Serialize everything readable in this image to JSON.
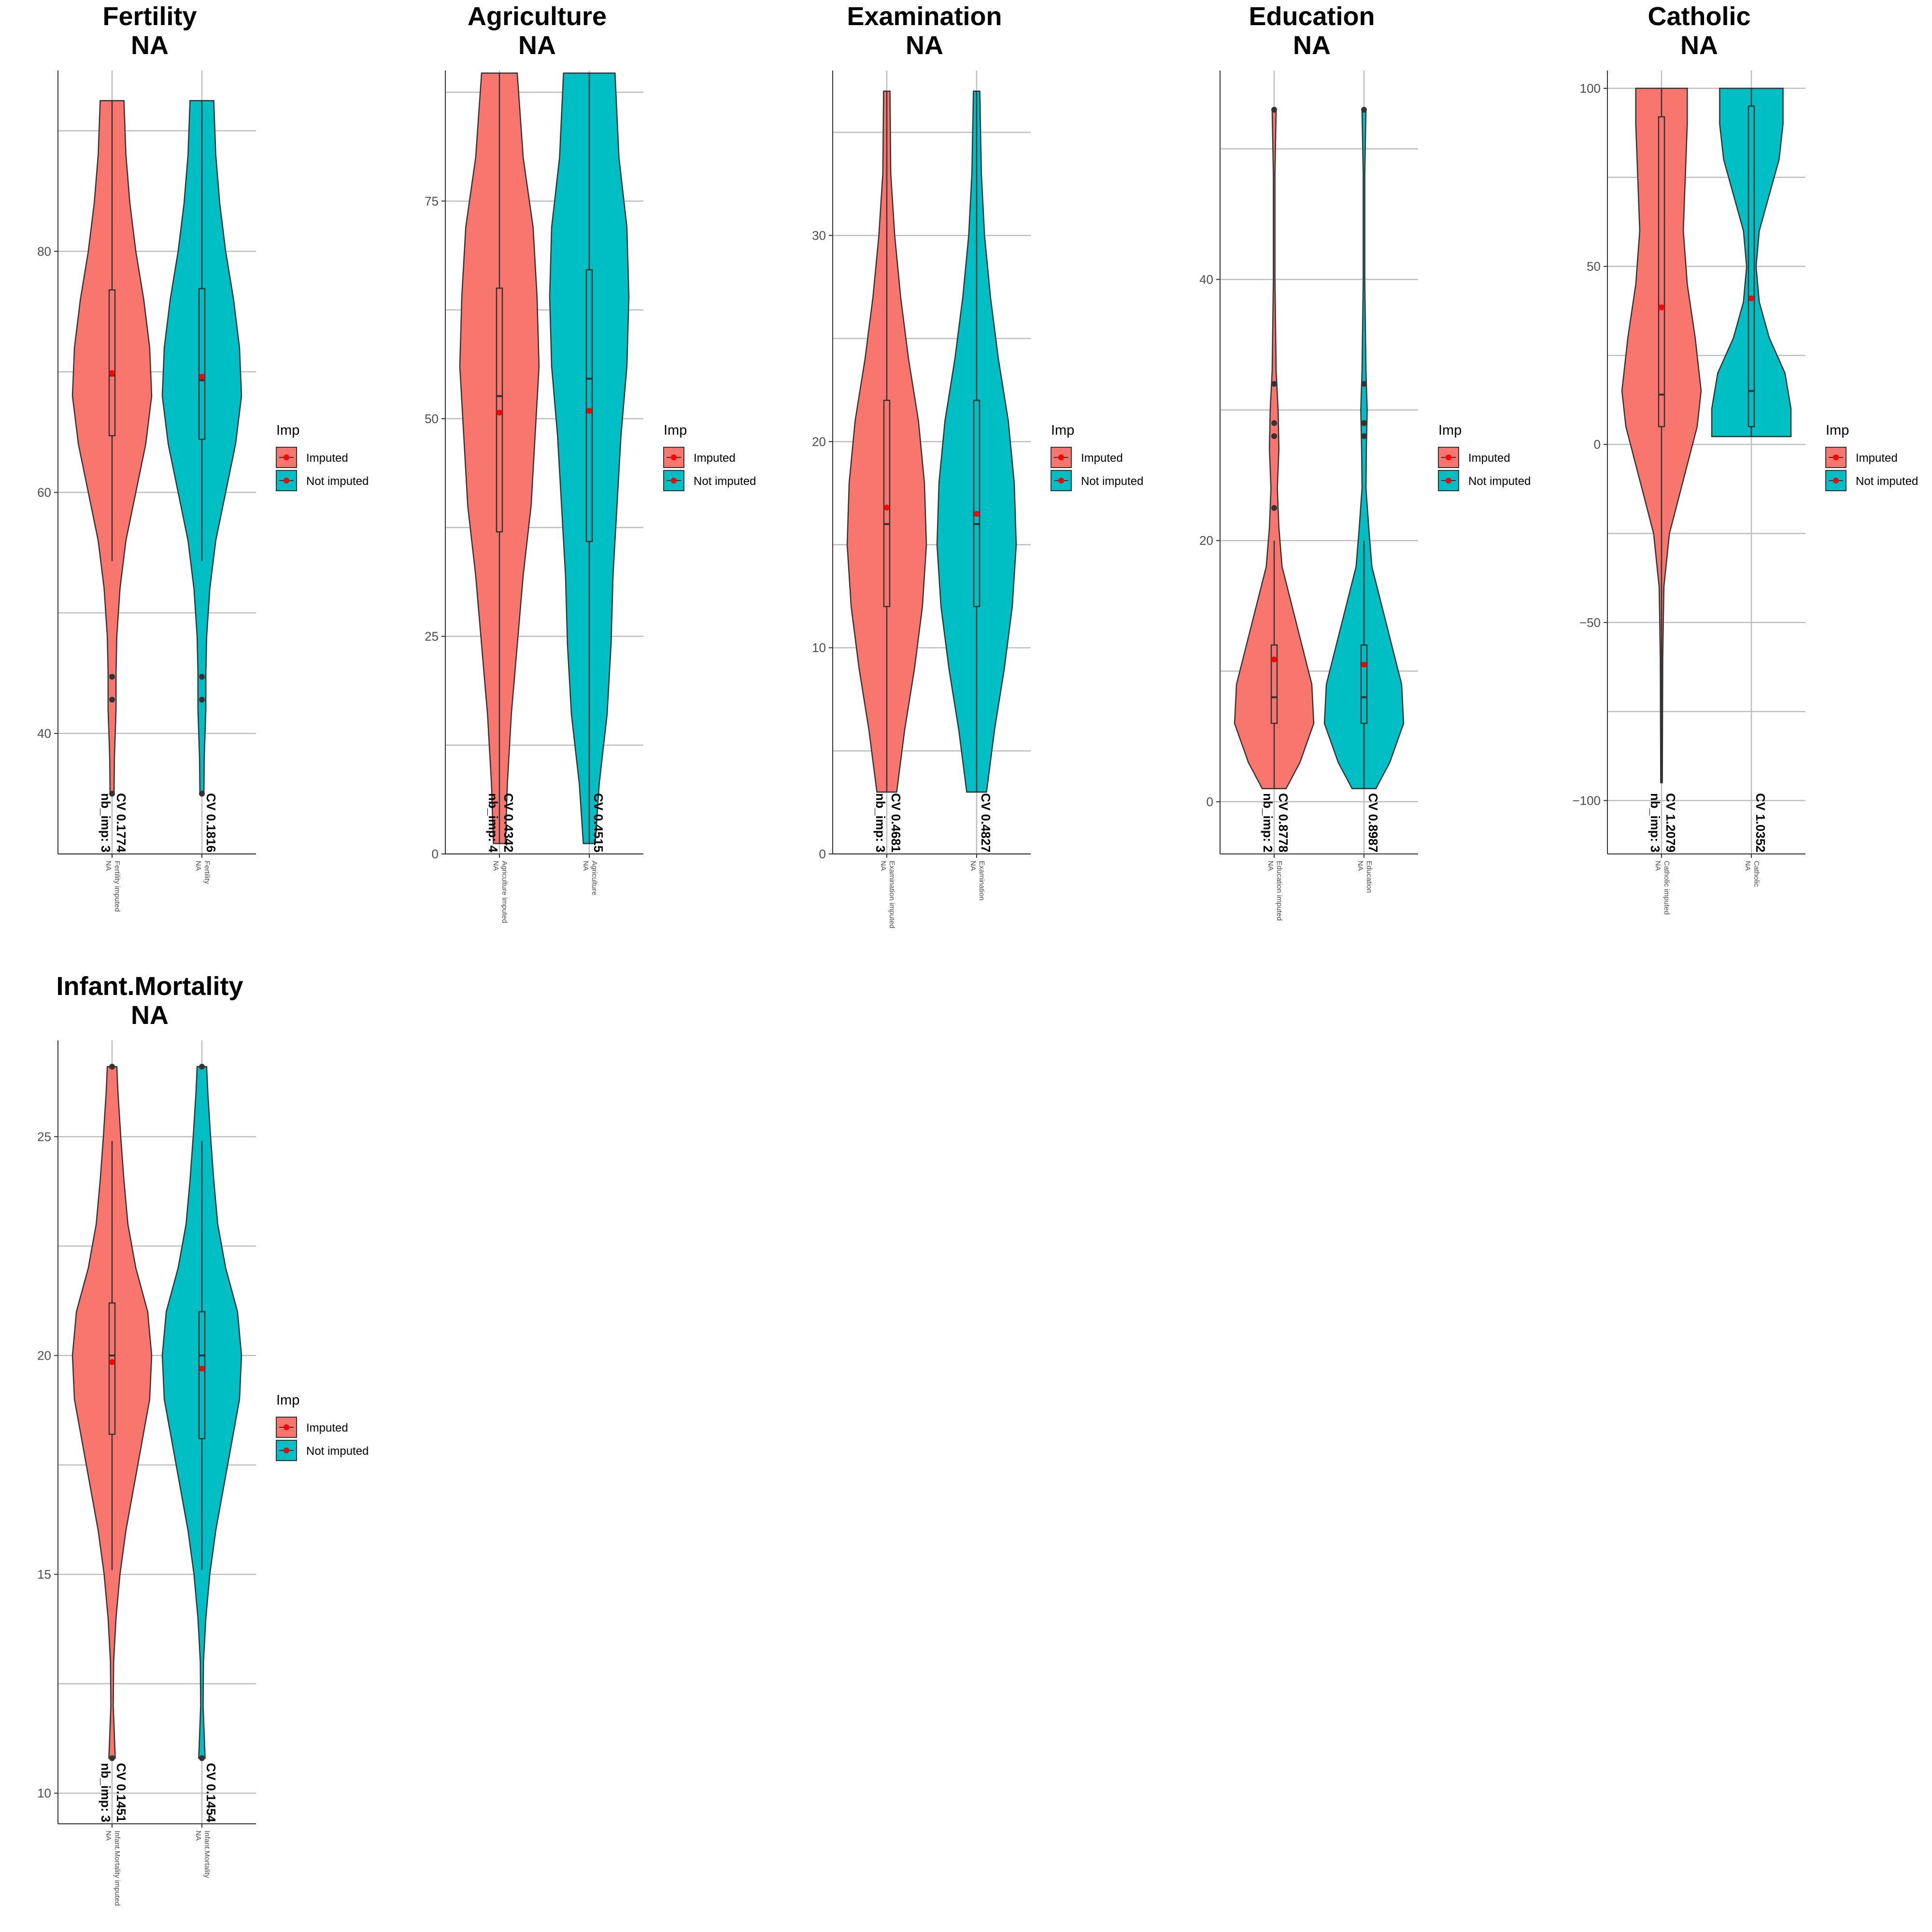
{
  "figure": {
    "legend_title": "Imp",
    "legend_entries": [
      "Imputed",
      "Not imputed"
    ]
  },
  "colors": {
    "imputed": "#F8766D",
    "not_imputed": "#00BFC4",
    "mean_marker": "#FF0000",
    "grid": "#BEBEBE",
    "axis": "#333333"
  },
  "chart_data": [
    {
      "type": "violin",
      "title": "Fertility",
      "subtitle": "NA",
      "ylim": [
        30,
        95
      ],
      "yticks": [
        40,
        60,
        80
      ],
      "gridlines": [
        30,
        40,
        50,
        60,
        70,
        80,
        90
      ],
      "categories": [
        "Fertility imputed\nNA",
        "Fertility\nNA"
      ],
      "series": [
        {
          "name": "Imputed",
          "cv_label": "CV 0.1774",
          "nb_imp_label": "nb_imp: 3",
          "min": 35,
          "max": 92.5,
          "q1": 64.7,
          "median": 69.7,
          "q3": 76.8,
          "mean": 69.9,
          "whisker_low": 54.3,
          "whisker_high": 92.5,
          "outliers": [
            42.8,
            44.7,
            35.0
          ],
          "density": [
            [
              35,
              0.05
            ],
            [
              38,
              0.06
            ],
            [
              42,
              0.1
            ],
            [
              45,
              0.1
            ],
            [
              48,
              0.12
            ],
            [
              52,
              0.2
            ],
            [
              56,
              0.35
            ],
            [
              60,
              0.6
            ],
            [
              64,
              0.85
            ],
            [
              68,
              1.0
            ],
            [
              72,
              0.95
            ],
            [
              76,
              0.8
            ],
            [
              80,
              0.6
            ],
            [
              84,
              0.45
            ],
            [
              88,
              0.35
            ],
            [
              92.5,
              0.3
            ]
          ]
        },
        {
          "name": "Not imputed",
          "cv_label": "CV 0.1816",
          "nb_imp_label": "",
          "min": 35,
          "max": 92.5,
          "q1": 64.4,
          "median": 69.3,
          "q3": 76.9,
          "mean": 69.6,
          "whisker_low": 54.3,
          "whisker_high": 92.5,
          "outliers": [
            42.8,
            44.7,
            35.0
          ],
          "density": [
            [
              35,
              0.05
            ],
            [
              38,
              0.06
            ],
            [
              42,
              0.1
            ],
            [
              45,
              0.1
            ],
            [
              48,
              0.12
            ],
            [
              52,
              0.2
            ],
            [
              56,
              0.35
            ],
            [
              60,
              0.6
            ],
            [
              64,
              0.85
            ],
            [
              68,
              1.0
            ],
            [
              72,
              0.95
            ],
            [
              76,
              0.8
            ],
            [
              80,
              0.6
            ],
            [
              84,
              0.45
            ],
            [
              88,
              0.35
            ],
            [
              92.5,
              0.3
            ]
          ]
        }
      ]
    },
    {
      "type": "violin",
      "title": "Agriculture",
      "subtitle": "NA",
      "ylim": [
        0,
        90
      ],
      "yticks": [
        0,
        25,
        50,
        75
      ],
      "gridlines": [
        0,
        12.5,
        25,
        37.5,
        50,
        62.5,
        75,
        87.5
      ],
      "categories": [
        "Agriculture imputed\nNA",
        "Agriculture\nNA"
      ],
      "series": [
        {
          "name": "Imputed",
          "cv_label": "CV 0.4342",
          "nb_imp_label": "nb_imp: 4",
          "min": 1.2,
          "max": 89.7,
          "q1": 37.0,
          "median": 52.6,
          "q3": 65.0,
          "mean": 50.7,
          "whisker_low": 1.2,
          "whisker_high": 89.7,
          "outliers": [],
          "density": [
            [
              1.2,
              0.15
            ],
            [
              8,
              0.2
            ],
            [
              16,
              0.3
            ],
            [
              24,
              0.45
            ],
            [
              32,
              0.6
            ],
            [
              40,
              0.8
            ],
            [
              48,
              0.9
            ],
            [
              56,
              1.0
            ],
            [
              64,
              0.95
            ],
            [
              72,
              0.85
            ],
            [
              80,
              0.6
            ],
            [
              89.7,
              0.45
            ]
          ]
        },
        {
          "name": "Not imputed",
          "cv_label": "CV 0.4515",
          "nb_imp_label": "",
          "min": 1.2,
          "max": 89.7,
          "q1": 35.9,
          "median": 54.6,
          "q3": 67.1,
          "mean": 50.9,
          "whisker_low": 1.2,
          "whisker_high": 89.7,
          "outliers": [],
          "density": [
            [
              1.2,
              0.15
            ],
            [
              8,
              0.25
            ],
            [
              16,
              0.45
            ],
            [
              24,
              0.55
            ],
            [
              32,
              0.6
            ],
            [
              40,
              0.7
            ],
            [
              48,
              0.8
            ],
            [
              56,
              0.95
            ],
            [
              64,
              1.0
            ],
            [
              72,
              0.95
            ],
            [
              80,
              0.75
            ],
            [
              89.7,
              0.65
            ]
          ]
        }
      ]
    },
    {
      "type": "violin",
      "title": "Examination",
      "subtitle": "NA",
      "ylim": [
        0,
        38
      ],
      "yticks": [
        0,
        10,
        20,
        30
      ],
      "gridlines": [
        0,
        5,
        10,
        15,
        20,
        25,
        30,
        35
      ],
      "categories": [
        "Examination imputed\nNA",
        "Examination\nNA"
      ],
      "series": [
        {
          "name": "Imputed",
          "cv_label": "CV 0.4681",
          "nb_imp_label": "nb_imp: 3",
          "min": 3,
          "max": 37,
          "q1": 12,
          "median": 16,
          "q3": 22,
          "mean": 16.8,
          "whisker_low": 3,
          "whisker_high": 37,
          "outliers": [],
          "density": [
            [
              3,
              0.25
            ],
            [
              6,
              0.45
            ],
            [
              9,
              0.7
            ],
            [
              12,
              0.9
            ],
            [
              15,
              1.0
            ],
            [
              18,
              0.95
            ],
            [
              21,
              0.8
            ],
            [
              24,
              0.55
            ],
            [
              27,
              0.35
            ],
            [
              30,
              0.2
            ],
            [
              33,
              0.1
            ],
            [
              37,
              0.08
            ]
          ]
        },
        {
          "name": "Not imputed",
          "cv_label": "CV 0.4827",
          "nb_imp_label": "",
          "min": 3,
          "max": 37,
          "q1": 12,
          "median": 16,
          "q3": 22,
          "mean": 16.5,
          "whisker_low": 3,
          "whisker_high": 37,
          "outliers": [],
          "density": [
            [
              3,
              0.25
            ],
            [
              6,
              0.45
            ],
            [
              9,
              0.7
            ],
            [
              12,
              0.9
            ],
            [
              15,
              1.0
            ],
            [
              18,
              0.95
            ],
            [
              21,
              0.8
            ],
            [
              24,
              0.55
            ],
            [
              27,
              0.35
            ],
            [
              30,
              0.2
            ],
            [
              33,
              0.12
            ],
            [
              37,
              0.08
            ]
          ]
        }
      ]
    },
    {
      "type": "violin",
      "title": "Education",
      "subtitle": "NA",
      "ylim": [
        -4,
        56
      ],
      "yticks": [
        0,
        20,
        40
      ],
      "gridlines": [
        0,
        10,
        20,
        30,
        40,
        50
      ],
      "categories": [
        "Education imputed\nNA",
        "Education\nNA"
      ],
      "series": [
        {
          "name": "Imputed",
          "cv_label": "CV 0.8778",
          "nb_imp_label": "nb_imp: 2",
          "min": 1,
          "max": 53,
          "q1": 6,
          "median": 8,
          "q3": 12,
          "mean": 10.9,
          "whisker_low": 1,
          "whisker_high": 20,
          "outliers": [
            22.5,
            28,
            29,
            32,
            53
          ],
          "density": [
            [
              1,
              0.3
            ],
            [
              3,
              0.65
            ],
            [
              6,
              1.0
            ],
            [
              9,
              0.95
            ],
            [
              12,
              0.7
            ],
            [
              15,
              0.45
            ],
            [
              18,
              0.2
            ],
            [
              21,
              0.12
            ],
            [
              24,
              0.08
            ],
            [
              27,
              0.12
            ],
            [
              30,
              0.1
            ],
            [
              33,
              0.05
            ],
            [
              40,
              0.02
            ],
            [
              48,
              0.02
            ],
            [
              53,
              0.05
            ]
          ]
        },
        {
          "name": "Not imputed",
          "cv_label": "CV 0.8987",
          "nb_imp_label": "",
          "min": 1,
          "max": 53,
          "q1": 6,
          "median": 8,
          "q3": 12,
          "mean": 10.5,
          "whisker_low": 1,
          "whisker_high": 20,
          "outliers": [
            28,
            29,
            32,
            53
          ],
          "density": [
            [
              1,
              0.3
            ],
            [
              3,
              0.65
            ],
            [
              6,
              1.0
            ],
            [
              9,
              0.95
            ],
            [
              12,
              0.7
            ],
            [
              15,
              0.45
            ],
            [
              18,
              0.2
            ],
            [
              21,
              0.12
            ],
            [
              24,
              0.05
            ],
            [
              27,
              0.06
            ],
            [
              30,
              0.08
            ],
            [
              33,
              0.05
            ],
            [
              40,
              0.02
            ],
            [
              48,
              0.02
            ],
            [
              53,
              0.05
            ]
          ]
        }
      ]
    },
    {
      "type": "violin",
      "title": "Catholic",
      "subtitle": "NA",
      "ylim": [
        -115,
        105
      ],
      "yticks": [
        -100,
        -50,
        0,
        50,
        100
      ],
      "gridlines": [
        -100,
        -75,
        -50,
        -25,
        0,
        25,
        50,
        75,
        100
      ],
      "categories": [
        "Catholic imputed\nNA",
        "Catholic\nNA"
      ],
      "series": [
        {
          "name": "Imputed",
          "cv_label": "CV 1.2079",
          "nb_imp_label": "nb_imp: 3",
          "min": -95,
          "max": 100,
          "q1": 5,
          "median": 14,
          "q3": 92,
          "mean": 38.5,
          "whisker_low": -95,
          "whisker_high": 100,
          "outliers": [],
          "density": [
            [
              -95,
              0.02
            ],
            [
              -60,
              0.03
            ],
            [
              -40,
              0.06
            ],
            [
              -25,
              0.2
            ],
            [
              -10,
              0.55
            ],
            [
              5,
              0.9
            ],
            [
              15,
              1.0
            ],
            [
              30,
              0.85
            ],
            [
              45,
              0.65
            ],
            [
              60,
              0.55
            ],
            [
              75,
              0.6
            ],
            [
              90,
              0.65
            ],
            [
              100,
              0.65
            ]
          ]
        },
        {
          "name": "Not imputed",
          "cv_label": "CV 1.0352",
          "nb_imp_label": "",
          "min": 2.2,
          "max": 100,
          "q1": 5,
          "median": 15,
          "q3": 95,
          "mean": 41,
          "whisker_low": 2.2,
          "whisker_high": 100,
          "outliers": [],
          "density": [
            [
              2.2,
              1.0
            ],
            [
              10,
              1.0
            ],
            [
              20,
              0.85
            ],
            [
              30,
              0.45
            ],
            [
              40,
              0.2
            ],
            [
              50,
              0.12
            ],
            [
              60,
              0.2
            ],
            [
              70,
              0.45
            ],
            [
              80,
              0.7
            ],
            [
              90,
              0.8
            ],
            [
              100,
              0.8
            ]
          ]
        }
      ]
    },
    {
      "type": "violin",
      "title": "Infant.Mortality",
      "subtitle": "NA",
      "ylim": [
        9.3,
        27.2
      ],
      "yticks": [
        10,
        15,
        20,
        25
      ],
      "gridlines": [
        10,
        12.5,
        15,
        17.5,
        20,
        22.5,
        25
      ],
      "categories": [
        "Infant.Mortality imputed\nNA",
        "Infant.Mortality\nNA"
      ],
      "series": [
        {
          "name": "Imputed",
          "cv_label": "CV 0.1451",
          "nb_imp_label": "nb_imp: 3",
          "min": 10.8,
          "max": 26.6,
          "q1": 18.2,
          "median": 20.0,
          "q3": 21.2,
          "mean": 19.85,
          "whisker_low": 15.1,
          "whisker_high": 24.9,
          "outliers": [
            10.8,
            26.6
          ],
          "density": [
            [
              10.8,
              0.08
            ],
            [
              12,
              0.03
            ],
            [
              13,
              0.04
            ],
            [
              14,
              0.1
            ],
            [
              15,
              0.2
            ],
            [
              16,
              0.35
            ],
            [
              17,
              0.55
            ],
            [
              18,
              0.75
            ],
            [
              19,
              0.95
            ],
            [
              20,
              1.0
            ],
            [
              21,
              0.9
            ],
            [
              22,
              0.6
            ],
            [
              23,
              0.4
            ],
            [
              24,
              0.3
            ],
            [
              25,
              0.22
            ],
            [
              26,
              0.15
            ],
            [
              26.6,
              0.12
            ]
          ]
        },
        {
          "name": "Not imputed",
          "cv_label": "CV 0.1454",
          "nb_imp_label": "",
          "min": 10.8,
          "max": 26.6,
          "q1": 18.1,
          "median": 20.0,
          "q3": 21.0,
          "mean": 19.7,
          "whisker_low": 15.1,
          "whisker_high": 24.9,
          "outliers": [
            10.8,
            26.6
          ],
          "density": [
            [
              10.8,
              0.08
            ],
            [
              12,
              0.03
            ],
            [
              13,
              0.04
            ],
            [
              14,
              0.1
            ],
            [
              15,
              0.2
            ],
            [
              16,
              0.35
            ],
            [
              17,
              0.55
            ],
            [
              18,
              0.75
            ],
            [
              19,
              0.95
            ],
            [
              20,
              1.0
            ],
            [
              21,
              0.9
            ],
            [
              22,
              0.6
            ],
            [
              23,
              0.4
            ],
            [
              24,
              0.3
            ],
            [
              25,
              0.22
            ],
            [
              26,
              0.15
            ],
            [
              26.6,
              0.12
            ]
          ]
        }
      ]
    }
  ]
}
